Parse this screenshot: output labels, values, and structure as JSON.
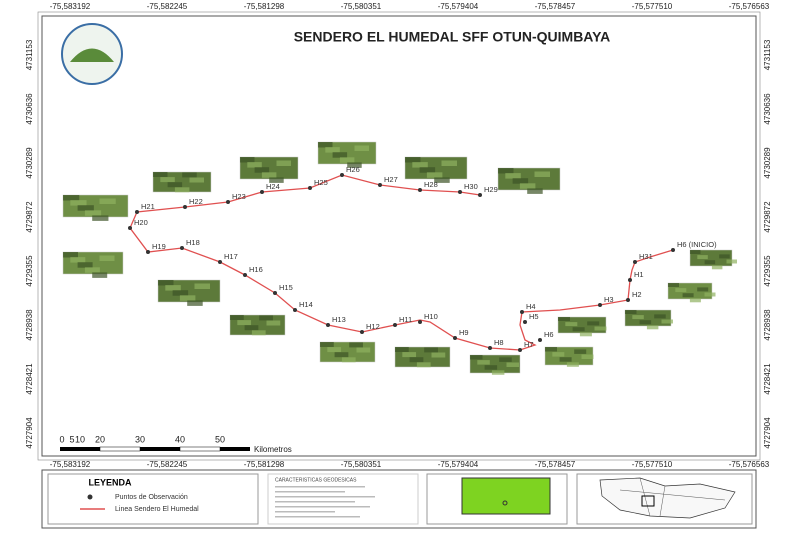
{
  "title": "SENDERO EL HUMEDAL SFF OTUN-QUIMBAYA",
  "x_coords": [
    "-75,583192",
    "-75,582245",
    "-75,581298",
    "-75,580351",
    "-75,579404",
    "-75,578457",
    "-75,577510",
    "-75,576563"
  ],
  "y_coords": [
    "4731153",
    "4730636",
    "4730289",
    "4729872",
    "4729355",
    "4728938",
    "4728421",
    "4727904"
  ],
  "nodes": [
    {
      "label": "H6 (INICIO)"
    },
    {
      "label": "H31"
    },
    {
      "label": "H1"
    },
    {
      "label": "H2"
    },
    {
      "label": "H3"
    },
    {
      "label": "H4"
    },
    {
      "label": "H5"
    },
    {
      "label": "H6"
    },
    {
      "label": "H7"
    },
    {
      "label": "H8"
    },
    {
      "label": "H9"
    },
    {
      "label": "H10"
    },
    {
      "label": "H11"
    },
    {
      "label": "H12"
    },
    {
      "label": "H13"
    },
    {
      "label": "H14"
    },
    {
      "label": "H15"
    },
    {
      "label": "H16"
    },
    {
      "label": "H17"
    },
    {
      "label": "H18"
    },
    {
      "label": "H19"
    },
    {
      "label": "H20"
    },
    {
      "label": "H21"
    },
    {
      "label": "H22"
    },
    {
      "label": "H23"
    },
    {
      "label": "H24"
    },
    {
      "label": "H25"
    },
    {
      "label": "H26"
    },
    {
      "label": "H27"
    },
    {
      "label": "H28"
    },
    {
      "label": "H30"
    },
    {
      "label": "H29"
    }
  ],
  "scale_bar": {
    "ticks": [
      "0",
      "5",
      "10",
      "20",
      "30",
      "40",
      "50"
    ],
    "unit": "Kilometros"
  },
  "legend": {
    "title": "LEYENDA",
    "items": [
      "Puntos de Observación",
      "Linea Sendero El Humedal"
    ]
  },
  "info_title": "CARACTERISTICAS GEODESICAS"
}
